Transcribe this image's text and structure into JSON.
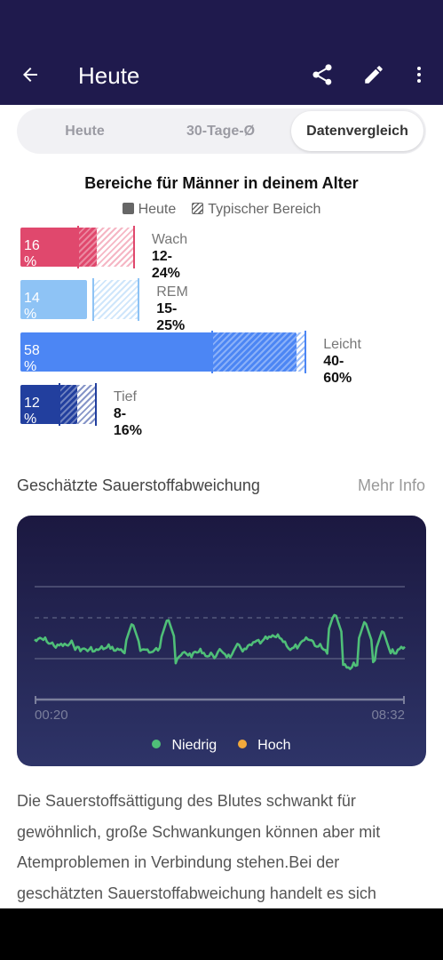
{
  "appbar": {
    "title": "Heute",
    "bg": "#1f1a4d"
  },
  "tabs": [
    {
      "label": "Heute",
      "active": false
    },
    {
      "label": "30-Tage-Ø",
      "active": false
    },
    {
      "label": "Datenvergleich",
      "active": true
    }
  ],
  "comparison": {
    "title": "Bereiche für Männer in deinem Alter",
    "legend_today": "Heute",
    "legend_typical": "Typischer Bereich",
    "rows": [
      {
        "name": "Wach",
        "today_pct": 16,
        "today_label": "16 %",
        "range": "12-24%",
        "range_min": 12,
        "range_max": 24,
        "color": "#e0486d",
        "light": "#f5b6c4"
      },
      {
        "name": "REM",
        "today_pct": 14,
        "today_label": "14 %",
        "range": "15-25%",
        "range_min": 15,
        "range_max": 25,
        "color": "#8ec3f5",
        "light": "#cfe6fb"
      },
      {
        "name": "Leicht",
        "today_pct": 58,
        "today_label": "58 %",
        "range": "40-60%",
        "range_min": 40,
        "range_max": 60,
        "color": "#4c86f4",
        "light": "#9fbff8"
      },
      {
        "name": "Tief",
        "today_pct": 12,
        "today_label": "12 %",
        "range": "8-16%",
        "range_min": 8,
        "range_max": 16,
        "color": "#223f9e",
        "light": "#8695c8"
      }
    ]
  },
  "spo2": {
    "section_title": "Geschätzte Sauerstoffabweichung",
    "more_info": "Mehr Info",
    "start_time": "00:20",
    "end_time": "08:32",
    "legend_low": "Niedrig",
    "legend_high": "Hoch",
    "low_color": "#4fbf78",
    "high_color": "#f2a93b"
  },
  "description": "Die Sauerstoffsättigung des Blutes schwankt für gewöhnlich, große Schwankungen können aber mit Atemproblemen in Verbindung stehen.Bei der geschätzten Sauerstoffabweichung handelt es sich"
}
